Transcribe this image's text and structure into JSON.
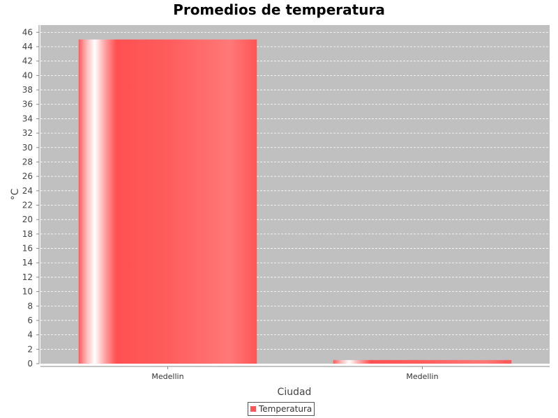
{
  "chart_data": {
    "type": "bar",
    "title": "Promedios de temperatura",
    "xlabel": "Ciudad",
    "ylabel": "°C",
    "categories": [
      "Medellin",
      "Medellin"
    ],
    "series": [
      {
        "name": "Temperatura",
        "values": [
          45,
          0.5
        ]
      }
    ],
    "ylim": [
      0,
      47
    ],
    "yticks": [
      0,
      2,
      4,
      6,
      8,
      10,
      12,
      14,
      16,
      18,
      20,
      22,
      24,
      26,
      28,
      30,
      32,
      34,
      36,
      38,
      40,
      42,
      44,
      46
    ],
    "grid": true,
    "legend_position": "bottom-center",
    "colors": {
      "bar": "#ff5555",
      "plot_background": "#c0c0c0",
      "grid": "#ffffff"
    }
  }
}
